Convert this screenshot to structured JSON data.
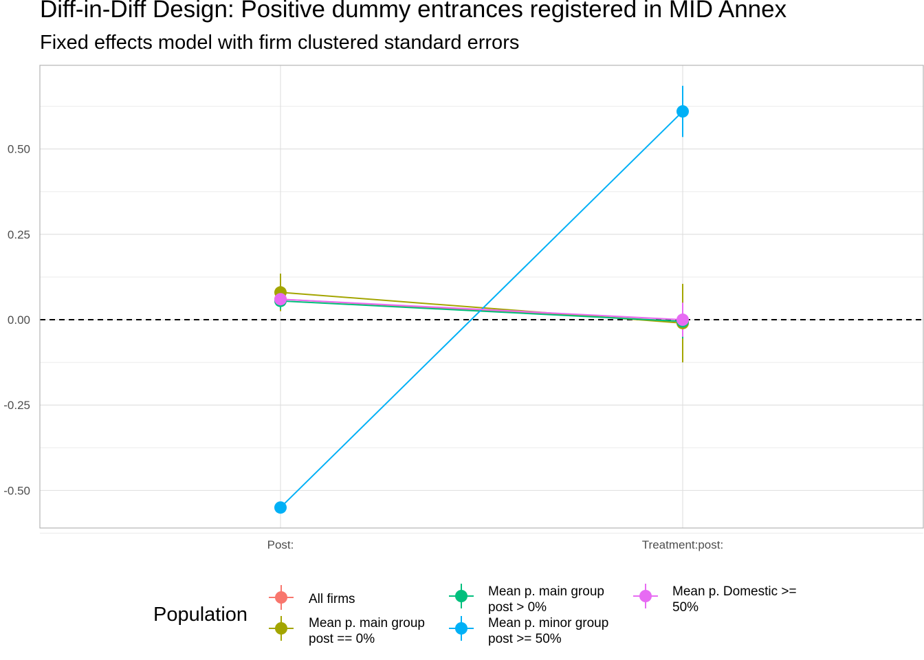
{
  "chart_data": {
    "type": "scatter",
    "title": "Diff-in-Diff Design: Positive dummy entrances registered in MID Annex",
    "subtitle": "Fixed effects model with firm clustered standard errors",
    "xlabel": "",
    "ylabel": "",
    "categories": [
      "Post:",
      "Treatment:post:"
    ],
    "ylim": [
      -0.61,
      0.745
    ],
    "yticks": [
      -0.5,
      -0.25,
      0.0,
      0.25,
      0.5
    ],
    "ytick_labels": [
      "-0.50",
      "-0.25",
      "0.00",
      "0.25",
      "0.50"
    ],
    "grid": true,
    "reference_line": {
      "y": 0,
      "style": "dashed"
    },
    "legend": {
      "title": "Population",
      "position": "bottom"
    },
    "series": [
      {
        "name": "All firms",
        "color": "#F8766D",
        "values": [
          0.06,
          -0.005
        ],
        "lower": [
          0.035,
          -0.06
        ],
        "upper": [
          0.085,
          0.05
        ]
      },
      {
        "name": "Mean p. main group post == 0%",
        "color": "#A3A500",
        "values": [
          0.08,
          -0.01
        ],
        "lower": [
          0.025,
          -0.125
        ],
        "upper": [
          0.135,
          0.105
        ]
      },
      {
        "name": "Mean p. main group post > 0%",
        "color": "#00BF7D",
        "values": [
          0.055,
          -0.005
        ],
        "lower": [
          0.03,
          -0.055
        ],
        "upper": [
          0.08,
          0.045
        ]
      },
      {
        "name": "Mean p. minor group post >= 50%",
        "color": "#00B0F6",
        "values": [
          -0.55,
          0.61
        ],
        "lower": [
          -0.565,
          0.535
        ],
        "upper": [
          -0.535,
          0.685
        ]
      },
      {
        "name": "Mean p. Domestic >= 50%",
        "color": "#E76BF3",
        "values": [
          0.06,
          0.0
        ],
        "lower": [
          0.04,
          -0.05
        ],
        "upper": [
          0.08,
          0.05
        ]
      }
    ]
  },
  "legend_items": [
    {
      "lines": [
        "All firms"
      ]
    },
    {
      "lines": [
        "Mean p. main group",
        "post == 0%"
      ]
    },
    {
      "lines": [
        "Mean p. main group",
        "post > 0%"
      ]
    },
    {
      "lines": [
        "Mean p. minor group",
        "post >= 50%"
      ]
    },
    {
      "lines": [
        "Mean p. Domestic >=",
        "50%"
      ]
    }
  ]
}
